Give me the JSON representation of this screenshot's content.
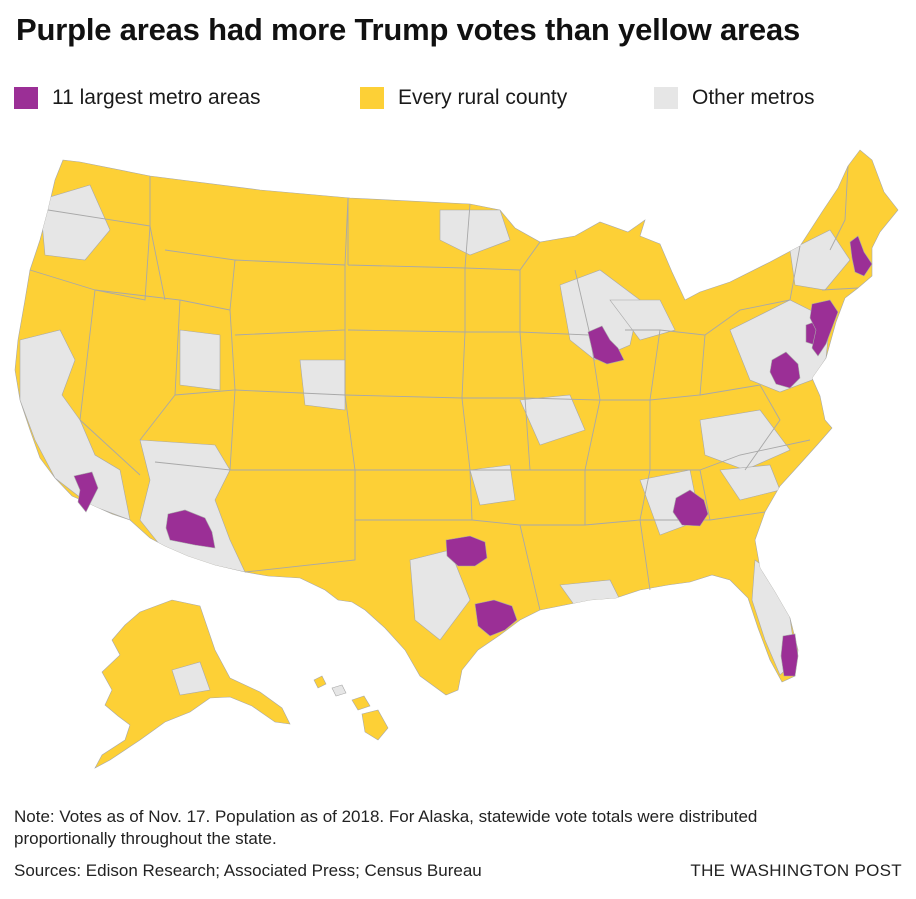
{
  "title": "Purple areas had more Trump votes than yellow areas",
  "legend": [
    {
      "label": "11 largest metro areas",
      "color": "#9b2f96"
    },
    {
      "label": "Every rural county",
      "color": "#fdd036"
    },
    {
      "label": "Other metros",
      "color": "#e6e6e6"
    }
  ],
  "map": {
    "region": "United States (lower 48, Alaska, Hawaii)",
    "boundary_color": "#a8a8a8",
    "category_colors": {
      "largest_metros": "#9b2f96",
      "rural": "#fdd036",
      "other_metros": "#e6e6e6"
    },
    "largest_metro_count": 11
  },
  "note": "Note: Votes as of Nov. 17. Population as of 2018. For Alaska, statewide vote totals were distributed proportionally throughout the state.",
  "sources": "Sources: Edison Research; Associated Press; Census Bureau",
  "credit": "THE WASHINGTON POST"
}
